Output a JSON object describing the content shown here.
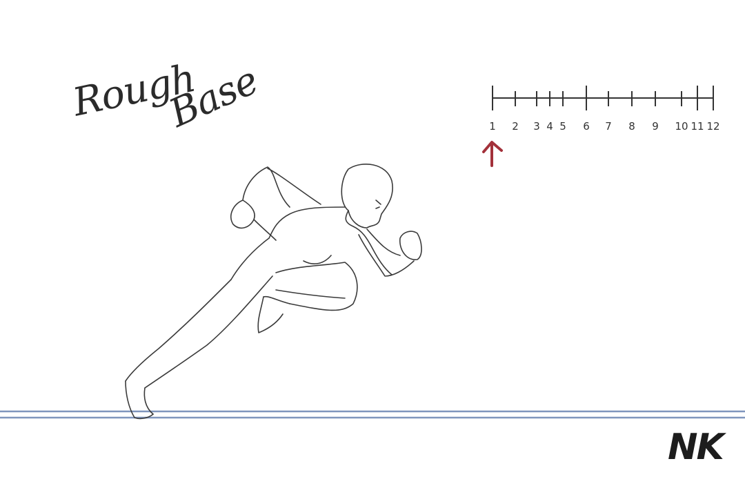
{
  "title": {
    "word1": "Rough",
    "word2": "Base"
  },
  "signature": "NK",
  "timing_chart": {
    "labels": [
      "1",
      "2",
      "3",
      "4",
      "5",
      "6",
      "7",
      "8",
      "9",
      "10",
      "11",
      "12"
    ],
    "current_frame": "1",
    "arrow_color": "#a3313a"
  },
  "colors": {
    "ink": "#3a3a3a",
    "ground_line": "#7f95bd",
    "background": "#ffffff"
  }
}
